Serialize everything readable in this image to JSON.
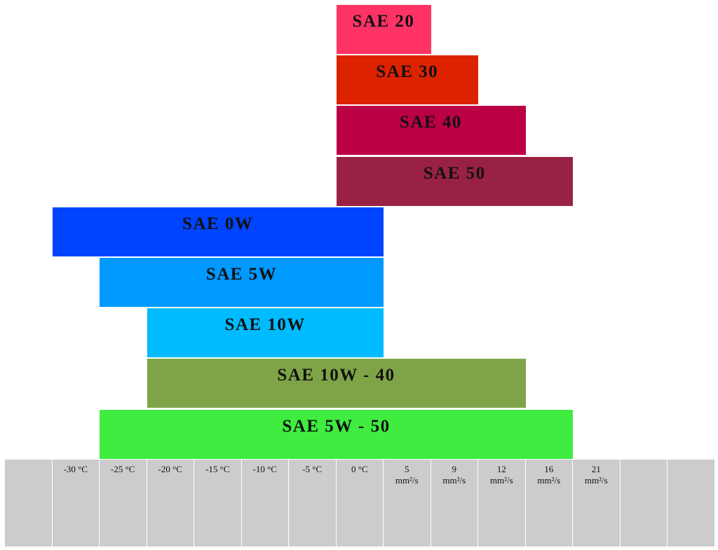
{
  "columns": [
    null,
    "-30 °C",
    "-25 °C",
    "-20 °C",
    "-15 °C",
    "-10 °C",
    "-5 °C",
    "0 °C",
    "5\nmm²/s",
    "9\nmm²/s",
    "12\nmm²/s",
    "16\nmm²/s",
    "21\nmm²/s",
    null,
    null
  ],
  "bars": [
    {
      "label": "SAE 20",
      "color": "#ff3366",
      "start": 7,
      "end": 9
    },
    {
      "label": "SAE 30",
      "color": "#dd2200",
      "start": 7,
      "end": 10
    },
    {
      "label": "SAE 40",
      "color": "#bb0044",
      "start": 7,
      "end": 11
    },
    {
      "label": "SAE 50",
      "color": "#992244",
      "start": 7,
      "end": 12
    },
    {
      "label": "SAE 0W",
      "color": "#0044ff",
      "start": 1,
      "end": 8
    },
    {
      "label": "SAE 5W",
      "color": "#0099ff",
      "start": 2,
      "end": 8
    },
    {
      "label": "SAE 10W",
      "color": "#00bbff",
      "start": 3,
      "end": 8
    },
    {
      "label": "SAE 10W - 40",
      "color": "#7fa447",
      "start": 3,
      "end": 11
    },
    {
      "label": "SAE 5W - 50",
      "color": "#3fec3f",
      "start": 2,
      "end": 12
    }
  ]
}
